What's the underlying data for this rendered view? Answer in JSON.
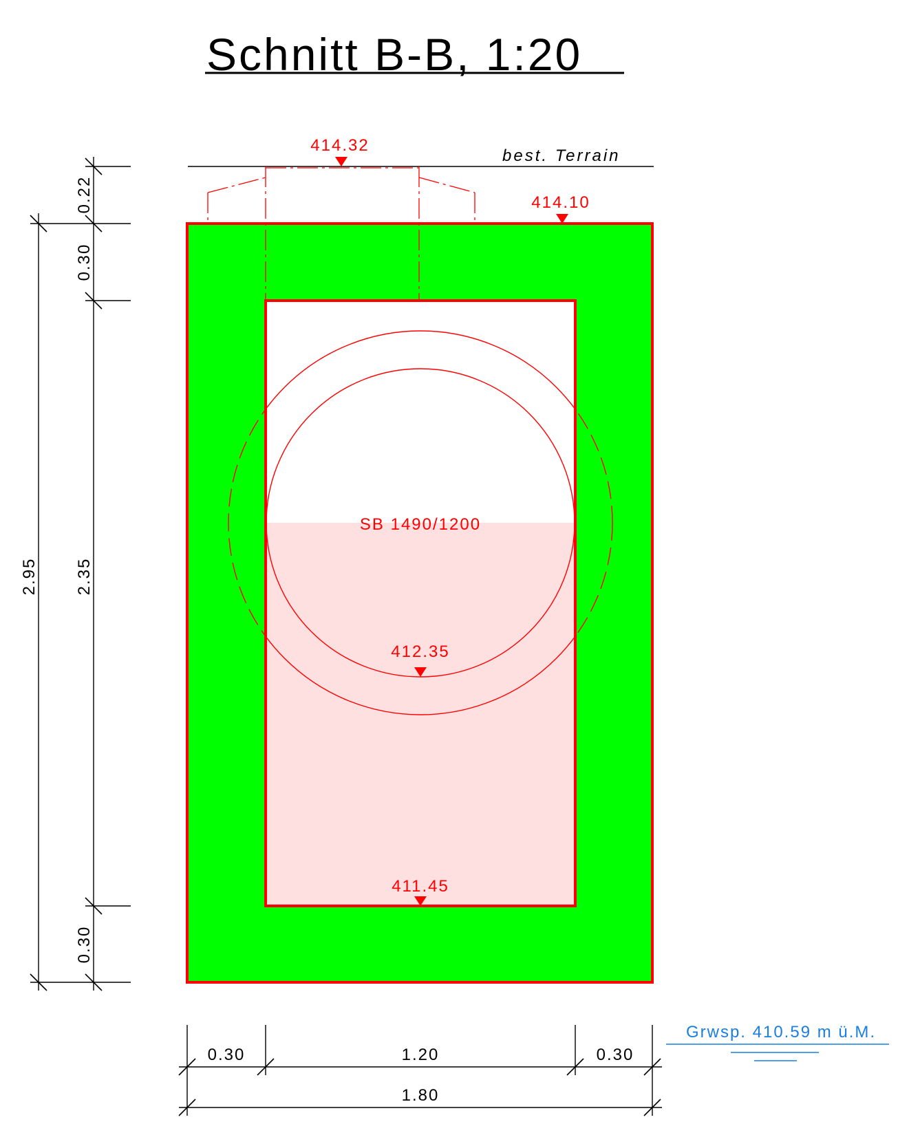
{
  "title": "Schnitt B-B, 1:20",
  "terrain_label": "best. Terrain",
  "levels": {
    "terrain": "414.32",
    "top": "414.10",
    "pipe_invert": "412.35",
    "bottom": "411.45"
  },
  "pipe_label": "SB 1490/1200",
  "groundwater_label": "Grwsp. 410.59 m ü.M.",
  "dims_vertical_outer": {
    "total": "2.95"
  },
  "dims_vertical_inner": {
    "terrain_gap": "0.22",
    "top_slab": "0.30",
    "inner_height": "2.35",
    "bottom_slab": "0.30"
  },
  "dims_horizontal": {
    "left_wall": "0.30",
    "inner_width": "1.20",
    "right_wall": "0.30",
    "total": "1.80"
  },
  "colors": {
    "concrete": "#00ff00",
    "outline": "#ff0000",
    "water_fill": "#ffe0e0",
    "groundwater": "#1a7fe0"
  }
}
